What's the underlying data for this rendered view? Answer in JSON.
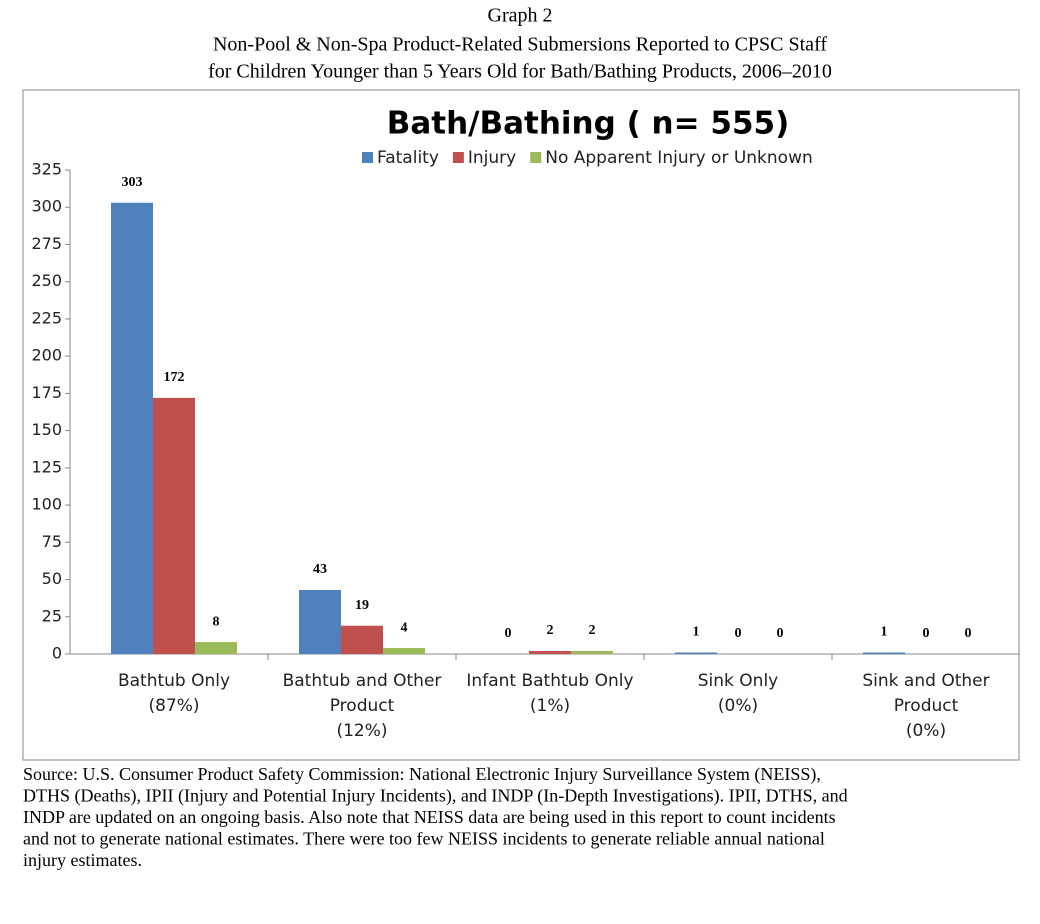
{
  "header": {
    "label": "Graph 2",
    "lines": [
      "Non-Pool & Non-Spa Product-Related Submersions Reported to CPSC Staff",
      "for Children Younger than 5 Years Old for Bath/Bathing Products, 2006–2010"
    ]
  },
  "chart_data": {
    "type": "bar",
    "title": "Bath/Bathing ( n= 555)",
    "categories": [
      [
        "Bathtub Only",
        "(87%)"
      ],
      [
        "Bathtub and Other",
        "Product",
        "(12%)"
      ],
      [
        "Infant Bathtub Only",
        "(1%)"
      ],
      [
        "Sink Only",
        "(0%)"
      ],
      [
        "Sink and Other",
        "Product",
        "(0%)"
      ]
    ],
    "series": [
      {
        "name": "Fatality",
        "color": "#4f81bd",
        "values": [
          303,
          43,
          0,
          1,
          1
        ]
      },
      {
        "name": "Injury",
        "color": "#c0504d",
        "values": [
          172,
          19,
          2,
          0,
          0
        ]
      },
      {
        "name": "No Apparent Injury or Unknown",
        "color": "#9bbb59",
        "values": [
          8,
          4,
          2,
          0,
          0
        ]
      }
    ],
    "ylim": [
      0,
      325
    ],
    "yticks": [
      0,
      25,
      50,
      75,
      100,
      125,
      150,
      175,
      200,
      225,
      250,
      275,
      300,
      325
    ],
    "grid": false,
    "legend": "top"
  },
  "source": [
    "Source:  U.S. Consumer Product Safety Commission: National Electronic Injury Surveillance System (NEISS),",
    "DTHS (Deaths), IPII (Injury and Potential Injury Incidents), and INDP (In-Depth Investigations).  IPII, DTHS, and",
    "INDP are updated on an ongoing basis.  Also note that NEISS data are being used in this report to count incidents",
    "and not to generate national estimates.  There were too few NEISS incidents to generate reliable annual national",
    "injury estimates."
  ]
}
